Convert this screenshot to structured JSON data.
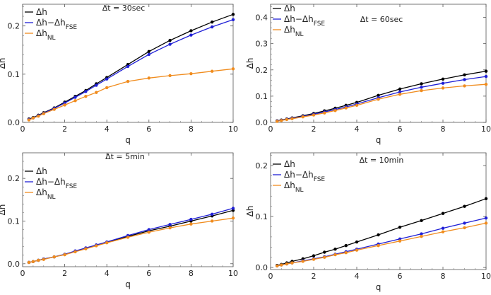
{
  "colors": {
    "dh": "#000000",
    "fse": "#1f1fd6",
    "nl": "#f08c1e"
  },
  "chart_data": [
    {
      "type": "line",
      "annotation": "Δt = 30sec",
      "xlabel": "q",
      "ylabel": "Δh",
      "xlim": [
        0,
        10
      ],
      "ylim": [
        0,
        0.245
      ],
      "xticks": [
        0,
        2,
        4,
        6,
        8,
        10
      ],
      "yticks": [
        0.0,
        0.1,
        0.2
      ],
      "x": [
        0.3,
        0.5,
        0.75,
        1,
        1.5,
        2,
        2.5,
        3,
        3.5,
        4,
        5,
        6,
        7,
        8,
        9,
        10
      ],
      "series": [
        {
          "name": "Δh",
          "values": [
            0.007,
            0.01,
            0.015,
            0.02,
            0.03,
            0.042,
            0.054,
            0.066,
            0.08,
            0.093,
            0.12,
            0.147,
            0.17,
            0.19,
            0.208,
            0.224
          ]
        },
        {
          "name": "Δh−Δh_FSE",
          "values": [
            0.006,
            0.009,
            0.014,
            0.019,
            0.029,
            0.04,
            0.052,
            0.064,
            0.077,
            0.09,
            0.116,
            0.141,
            0.162,
            0.181,
            0.198,
            0.213
          ]
        },
        {
          "name": "Δh_NL",
          "values": [
            0.005,
            0.009,
            0.013,
            0.018,
            0.027,
            0.036,
            0.045,
            0.054,
            0.062,
            0.072,
            0.085,
            0.092,
            0.097,
            0.101,
            0.106,
            0.111
          ]
        }
      ]
    },
    {
      "type": "line",
      "annotation": "Δt = 60sec",
      "xlabel": "q",
      "ylabel": "Δh",
      "xlim": [
        0,
        10
      ],
      "ylim": [
        0,
        0.45
      ],
      "xticks": [
        0,
        2,
        4,
        6,
        8,
        10
      ],
      "yticks": [
        0.0,
        0.1,
        0.2,
        0.3,
        0.4
      ],
      "x": [
        0.3,
        0.5,
        0.75,
        1,
        1.5,
        2,
        2.5,
        3,
        3.5,
        4,
        5,
        6,
        7,
        8,
        9,
        10
      ],
      "series": [
        {
          "name": "Δh",
          "values": [
            0.006,
            0.009,
            0.013,
            0.017,
            0.025,
            0.034,
            0.044,
            0.054,
            0.065,
            0.076,
            0.103,
            0.127,
            0.147,
            0.165,
            0.181,
            0.195
          ]
        },
        {
          "name": "Δh−Δh_FSE",
          "values": [
            0.005,
            0.008,
            0.012,
            0.016,
            0.023,
            0.031,
            0.04,
            0.049,
            0.059,
            0.07,
            0.094,
            0.116,
            0.134,
            0.149,
            0.163,
            0.175
          ]
        },
        {
          "name": "Δh_NL",
          "values": [
            0.004,
            0.007,
            0.011,
            0.014,
            0.021,
            0.028,
            0.036,
            0.045,
            0.055,
            0.065,
            0.088,
            0.107,
            0.121,
            0.131,
            0.139,
            0.145
          ]
        }
      ]
    },
    {
      "type": "line",
      "annotation": "Δt = 5min",
      "xlabel": "q",
      "ylabel": "Δh",
      "xlim": [
        0,
        10
      ],
      "ylim": [
        -0.007,
        0.26
      ],
      "xticks": [
        0,
        2,
        4,
        6,
        8,
        10
      ],
      "yticks": [
        0.0,
        0.1,
        0.2
      ],
      "x": [
        0.3,
        0.5,
        0.75,
        1,
        1.5,
        2,
        2.5,
        3,
        3.5,
        4,
        5,
        6,
        7,
        8,
        9,
        10
      ],
      "series": [
        {
          "name": "Δh",
          "values": [
            0.003,
            0.005,
            0.008,
            0.011,
            0.016,
            0.022,
            0.029,
            0.036,
            0.043,
            0.05,
            0.064,
            0.077,
            0.088,
            0.1,
            0.112,
            0.125
          ]
        },
        {
          "name": "Δh−Δh_FSE",
          "values": [
            0.003,
            0.005,
            0.008,
            0.011,
            0.016,
            0.022,
            0.03,
            0.037,
            0.044,
            0.051,
            0.066,
            0.08,
            0.092,
            0.104,
            0.116,
            0.13
          ]
        },
        {
          "name": "Δh_NL",
          "values": [
            0.003,
            0.005,
            0.008,
            0.01,
            0.016,
            0.021,
            0.028,
            0.035,
            0.042,
            0.049,
            0.062,
            0.074,
            0.084,
            0.093,
            0.1,
            0.107
          ]
        }
      ]
    },
    {
      "type": "line",
      "annotation": "Δt = 10min",
      "xlabel": "q",
      "ylabel": "Δh",
      "xlim": [
        0,
        10
      ],
      "ylim": [
        -0.004,
        0.225
      ],
      "xticks": [
        0,
        2,
        4,
        6,
        8,
        10
      ],
      "yticks": [
        0.0,
        0.1,
        0.2
      ],
      "x": [
        0.3,
        0.5,
        0.75,
        1,
        1.5,
        2,
        2.5,
        3,
        3.5,
        4,
        5,
        6,
        7,
        8,
        9,
        10
      ],
      "series": [
        {
          "name": "Δh",
          "values": [
            0.004,
            0.006,
            0.009,
            0.012,
            0.017,
            0.023,
            0.03,
            0.036,
            0.043,
            0.05,
            0.064,
            0.079,
            0.092,
            0.106,
            0.12,
            0.135
          ]
        },
        {
          "name": "Δh−Δh_FSE",
          "values": [
            0.003,
            0.005,
            0.007,
            0.009,
            0.013,
            0.017,
            0.021,
            0.026,
            0.031,
            0.036,
            0.046,
            0.056,
            0.066,
            0.077,
            0.087,
            0.097
          ]
        },
        {
          "name": "Δh_NL",
          "values": [
            0.003,
            0.005,
            0.007,
            0.009,
            0.012,
            0.016,
            0.02,
            0.025,
            0.029,
            0.034,
            0.043,
            0.052,
            0.061,
            0.07,
            0.078,
            0.087
          ]
        }
      ]
    }
  ]
}
